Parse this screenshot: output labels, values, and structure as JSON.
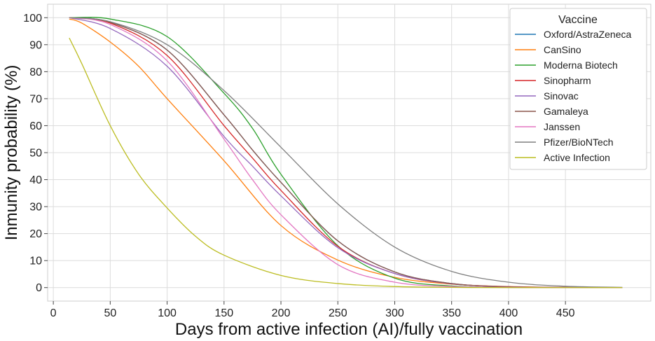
{
  "chart_data": {
    "type": "line",
    "title": "",
    "xlabel": "Days from active infection (AI)/fully vaccination",
    "ylabel": "Inmunity probability (%)",
    "xlim": [
      -5,
      525
    ],
    "ylim": [
      -5,
      105
    ],
    "xticks": [
      0,
      50,
      100,
      150,
      200,
      250,
      300,
      350,
      400,
      450
    ],
    "yticks": [
      0,
      10,
      20,
      30,
      40,
      50,
      60,
      70,
      80,
      90,
      100
    ],
    "grid": true,
    "legend": {
      "title": "Vaccine",
      "placement": "top-right"
    },
    "series": [
      {
        "name": "Oxford/AstraZeneca",
        "color": "#1f77b4",
        "x": [
          14,
          50,
          100,
          150,
          175,
          200,
          250,
          300,
          350,
          400,
          450,
          500
        ],
        "y": [
          100,
          98.3,
          88,
          64,
          51,
          39,
          17.3,
          5.8,
          1.5,
          0.3,
          0.05,
          0
        ]
      },
      {
        "name": "CanSino",
        "color": "#ff7f0e",
        "x": [
          14,
          25,
          50,
          75,
          100,
          150,
          200,
          250,
          300,
          350,
          400,
          450,
          500
        ],
        "y": [
          99.5,
          98,
          91,
          82,
          70,
          47,
          23,
          10.2,
          3.8,
          1.3,
          0.4,
          0.1,
          0
        ]
      },
      {
        "name": "Moderna Biotech",
        "color": "#2ca02c",
        "x": [
          14,
          50,
          100,
          150,
          175,
          200,
          250,
          300,
          350,
          400,
          450,
          500
        ],
        "y": [
          100,
          99.5,
          93,
          72,
          59,
          42,
          15.5,
          3.5,
          0.6,
          0.1,
          0,
          0
        ]
      },
      {
        "name": "Sinopharm",
        "color": "#d62728",
        "x": [
          14,
          50,
          100,
          150,
          175,
          200,
          250,
          300,
          350,
          400,
          450,
          500
        ],
        "y": [
          100,
          98,
          86,
          60,
          48,
          36,
          15.3,
          5.2,
          1.4,
          0.3,
          0.05,
          0
        ]
      },
      {
        "name": "Sinovac",
        "color": "#9467bd",
        "x": [
          14,
          50,
          100,
          150,
          175,
          200,
          250,
          300,
          350,
          400,
          450,
          500
        ],
        "y": [
          100,
          96,
          82,
          56,
          45,
          34,
          14.8,
          5.2,
          1.4,
          0.3,
          0.05,
          0
        ]
      },
      {
        "name": "Gamaleya",
        "color": "#8c564b",
        "x": [
          14,
          50,
          100,
          150,
          175,
          200,
          250,
          300,
          350,
          400,
          450,
          500
        ],
        "y": [
          100,
          98.3,
          88,
          64,
          51,
          39,
          17.3,
          5.8,
          1.5,
          0.3,
          0.05,
          0
        ]
      },
      {
        "name": "Janssen",
        "color": "#e377c2",
        "x": [
          14,
          50,
          100,
          150,
          175,
          200,
          250,
          300,
          350,
          400,
          450,
          500
        ],
        "y": [
          100,
          97.5,
          84,
          55,
          40,
          27,
          8.5,
          2,
          0.4,
          0.05,
          0,
          0
        ]
      },
      {
        "name": "Pfizer/BioNTech",
        "color": "#7f7f7f",
        "x": [
          14,
          50,
          100,
          150,
          200,
          250,
          300,
          350,
          400,
          450,
          500
        ],
        "y": [
          100,
          98.5,
          90,
          73,
          52,
          31,
          15,
          6,
          2,
          0.5,
          0.1
        ]
      },
      {
        "name": "Active Infection",
        "color": "#bcbd22",
        "x": [
          14,
          25,
          50,
          75,
          100,
          125,
          150,
          200,
          250,
          300,
          350,
          400,
          500
        ],
        "y": [
          92.5,
          83,
          60,
          42,
          29.5,
          19,
          12,
          4.5,
          1.5,
          0.4,
          0.1,
          0,
          0
        ]
      }
    ]
  }
}
